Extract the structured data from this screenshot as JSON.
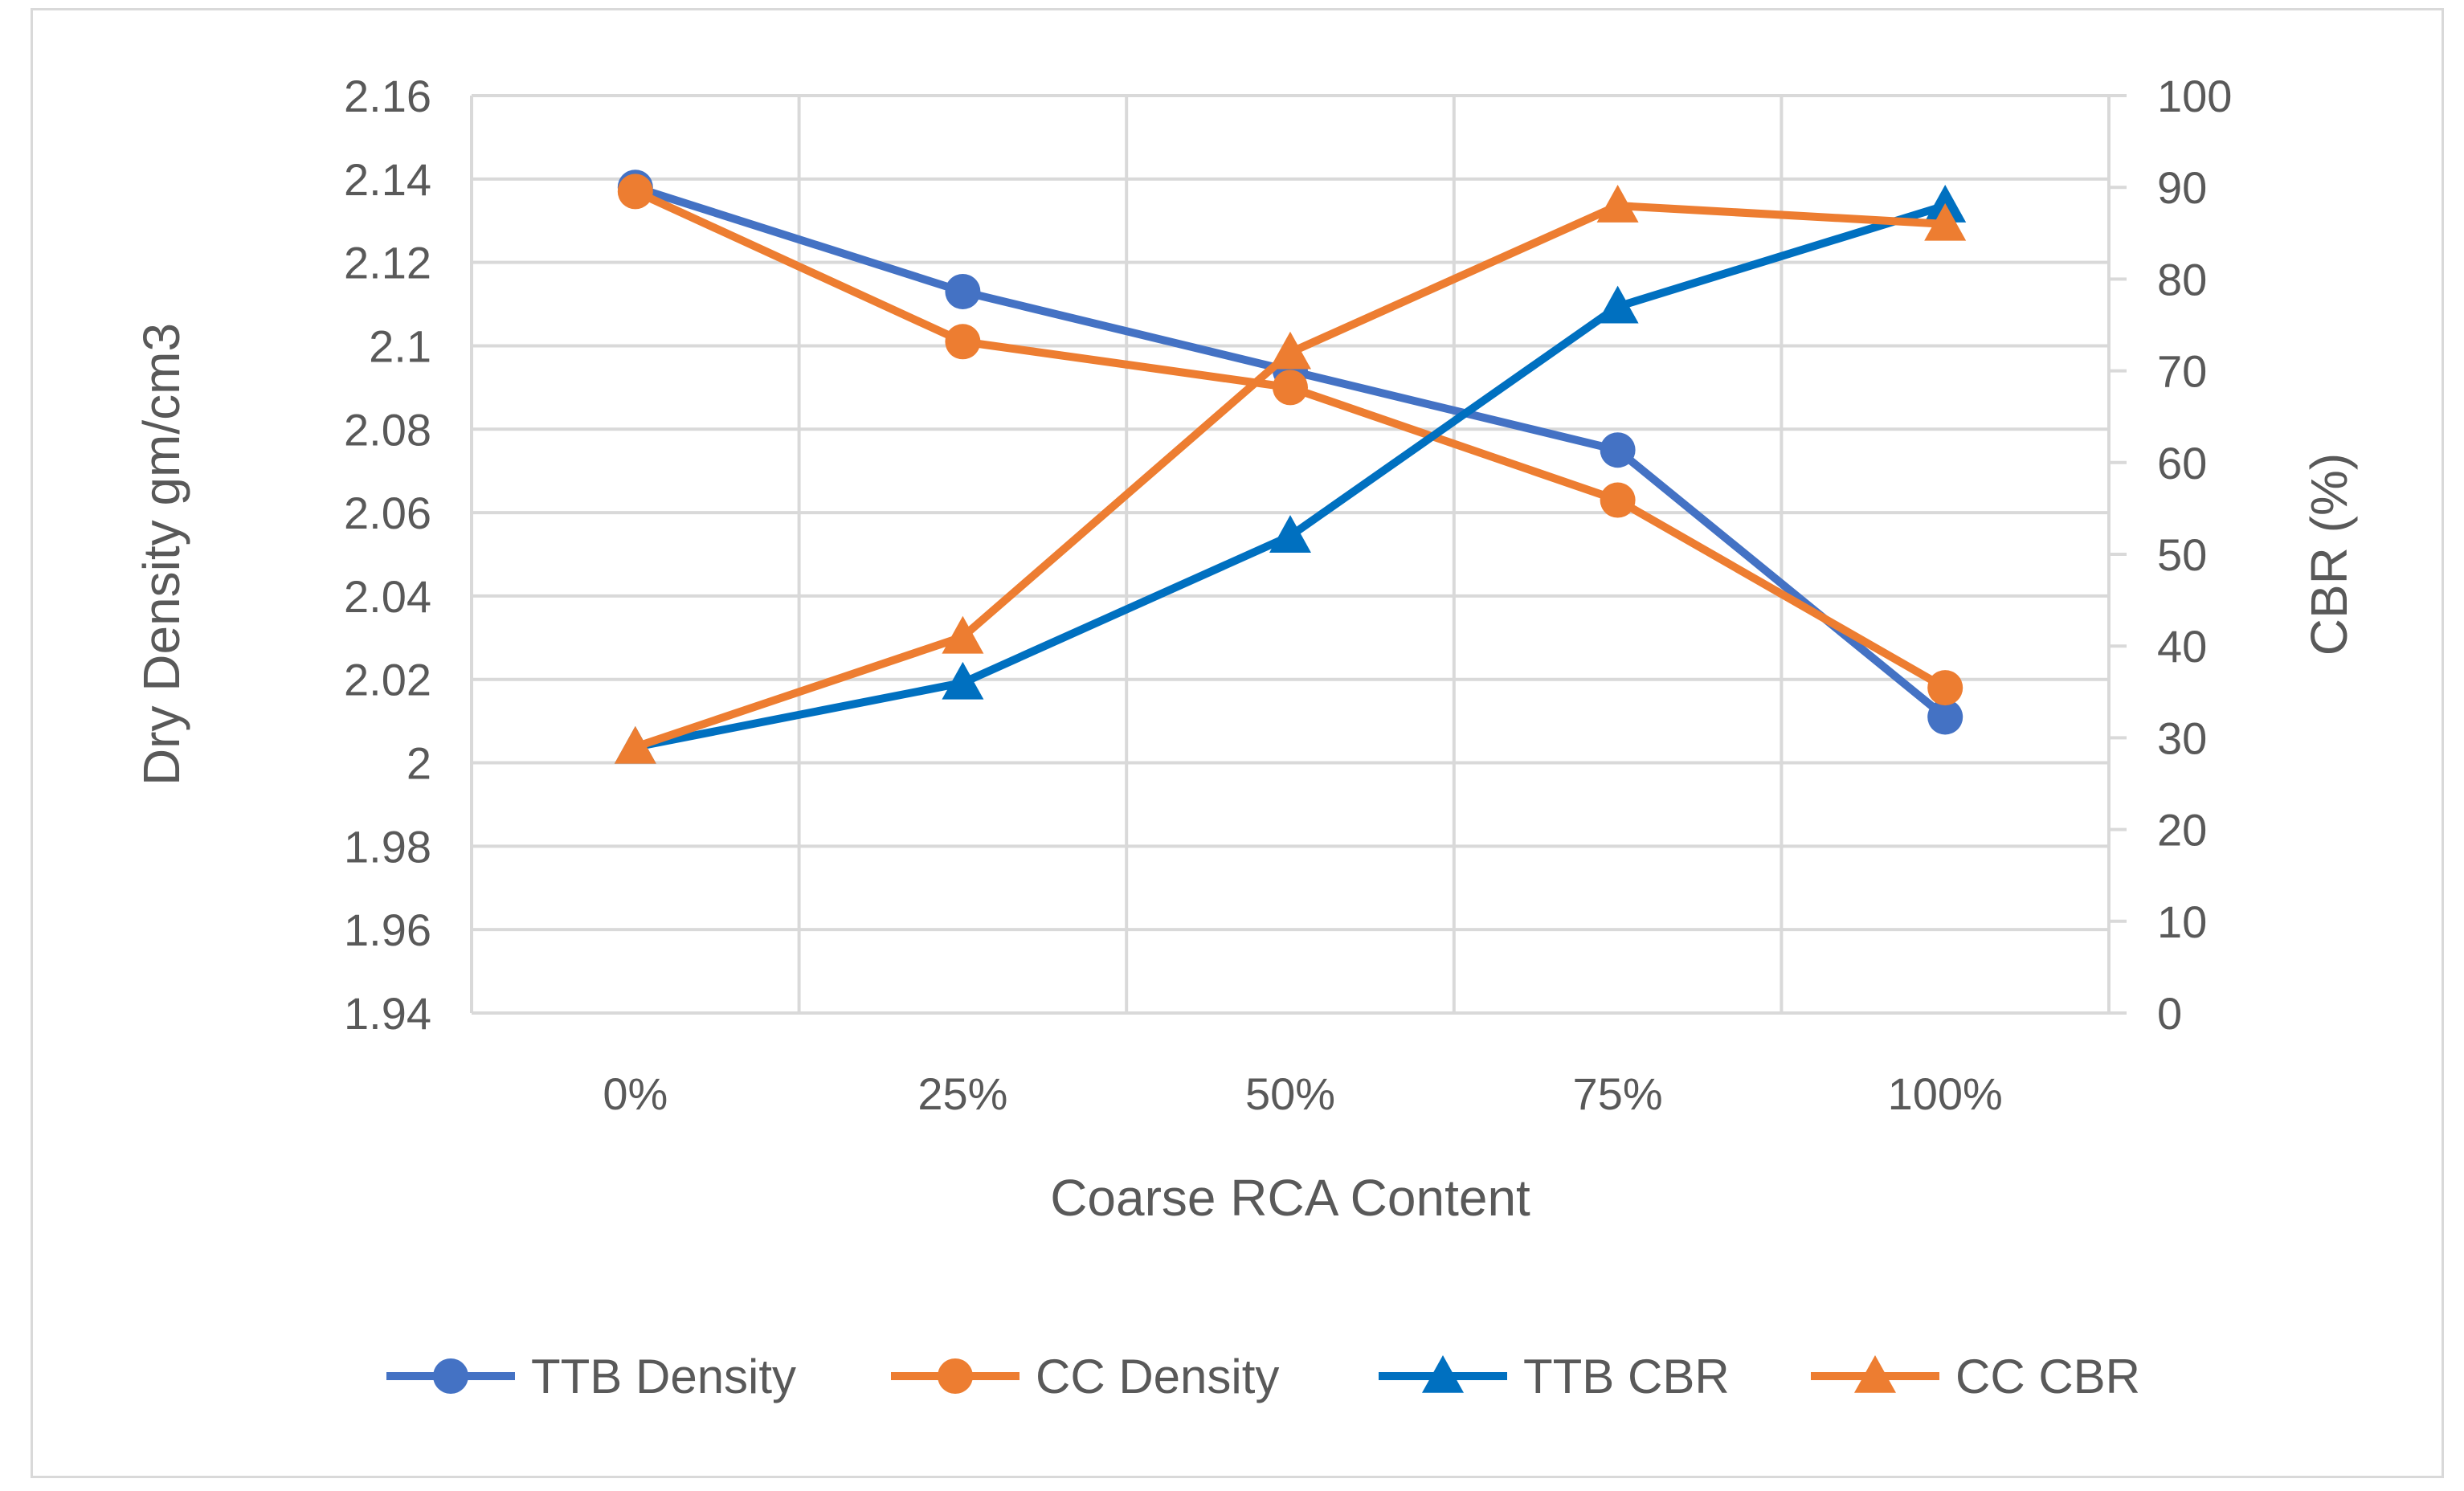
{
  "chart_data": {
    "type": "line",
    "title": "",
    "categories": [
      "0%",
      "25%",
      "50%",
      "75%",
      "100%"
    ],
    "xlabel": "Coarse RCA Content",
    "ylabel_left": "Dry Density gm/cm3",
    "ylabel_right": "CBR (%)",
    "ylim_left": [
      1.94,
      2.16
    ],
    "ylim_right": [
      0,
      100
    ],
    "yticks_left": [
      "1.94",
      "1.96",
      "1.98",
      "2",
      "2.02",
      "2.04",
      "2.06",
      "2.08",
      "2.1",
      "2.12",
      "2.14",
      "2.16"
    ],
    "yticks_right": [
      "0",
      "10",
      "20",
      "30",
      "40",
      "50",
      "60",
      "70",
      "80",
      "90",
      "100"
    ],
    "grid": true,
    "legend_position": "bottom",
    "series": [
      {
        "name": "TTB Density",
        "axis": "left",
        "marker": "circle",
        "color": "#4472C4",
        "values": [
          2.138,
          2.113,
          2.094,
          2.075,
          2.011
        ]
      },
      {
        "name": "CC Density",
        "axis": "left",
        "marker": "circle",
        "color": "#ED7D31",
        "values": [
          2.137,
          2.101,
          2.09,
          2.063,
          2.018
        ]
      },
      {
        "name": "TTB CBR",
        "axis": "right",
        "marker": "triangle",
        "color": "#0070C0",
        "values": [
          29,
          36,
          52,
          77,
          88
        ]
      },
      {
        "name": "CC CBR",
        "axis": "right",
        "marker": "triangle",
        "color": "#ED7D31",
        "values": [
          29,
          41,
          72,
          88,
          86
        ]
      }
    ]
  }
}
